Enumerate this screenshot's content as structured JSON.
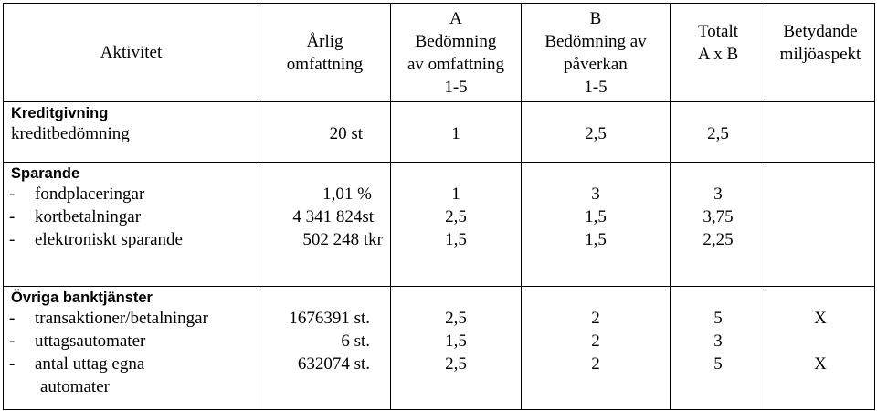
{
  "headers": {
    "aktivitet": [
      "Aktivitet"
    ],
    "arlig": [
      "Årlig",
      "omfattning"
    ],
    "a": [
      "A",
      "Bedömning",
      "av omfattning",
      "1-5"
    ],
    "b": [
      "B",
      "Bedömning av",
      "påverkan",
      "1-5"
    ],
    "totalt": [
      "Totalt",
      "A x B"
    ],
    "betydande": [
      "Betydande",
      "miljöaspekt"
    ]
  },
  "sections": [
    {
      "title": "Kreditgivning",
      "items": [
        "kreditbedömning"
      ],
      "omfattning": [
        "20 st"
      ],
      "a": [
        "1"
      ],
      "b": [
        "2,5"
      ],
      "totalt": [
        "2,5"
      ],
      "betydande": [
        ""
      ]
    },
    {
      "title": "Sparande",
      "items": [
        "fondplaceringar",
        "kortbetalningar",
        "elektroniskt sparande"
      ],
      "omfattning": [
        "1,01 %",
        "4 341 824st",
        "502 248 tkr"
      ],
      "a": [
        "1",
        "2,5",
        "1,5"
      ],
      "b": [
        "3",
        "1,5",
        "1,5"
      ],
      "totalt": [
        "3",
        "3,75",
        "2,25"
      ],
      "betydande": [
        "",
        "",
        ""
      ]
    },
    {
      "title": "Övriga banktjänster",
      "items": [
        "transaktioner/betalningar",
        "uttagsautomater",
        "antal uttag egna"
      ],
      "item_continuation": "automater",
      "omfattning": [
        "1676391 st.",
        "6 st.",
        "632074 st."
      ],
      "a": [
        "2,5",
        "1,5",
        "2,5"
      ],
      "b": [
        "2",
        "2",
        "2"
      ],
      "totalt": [
        "5",
        "3",
        "5"
      ],
      "betydande": [
        "X",
        "",
        "X"
      ]
    }
  ],
  "dash": "-"
}
